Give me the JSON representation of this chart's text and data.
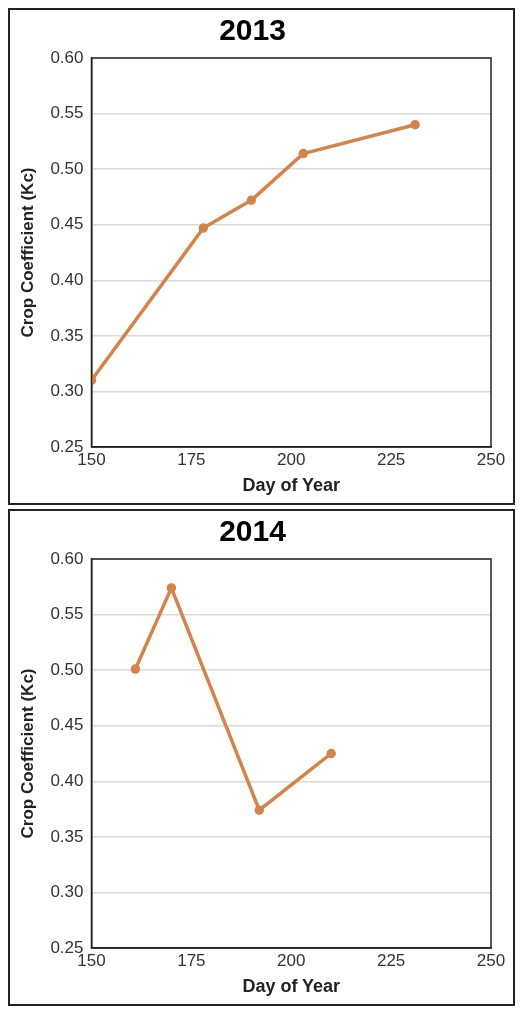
{
  "chart_data": [
    {
      "type": "line",
      "title": "2013",
      "xlabel": "Day of Year",
      "ylabel": "Crop Coefficient (Kc)",
      "xlim": [
        150,
        250
      ],
      "xticks": [
        150,
        175,
        200,
        225,
        250
      ],
      "ylim": [
        0.25,
        0.6
      ],
      "yticks": [
        {
          "value": 0.25,
          "label": "0.25"
        },
        {
          "value": 0.3,
          "label": "0.30"
        },
        {
          "value": 0.35,
          "label": "0.35"
        },
        {
          "value": 0.4,
          "label": "0.40"
        },
        {
          "value": 0.45,
          "label": "0.45"
        },
        {
          "value": 0.5,
          "label": "0.50"
        },
        {
          "value": 0.55,
          "label": "0.55"
        },
        {
          "value": 0.6,
          "label": "0.60"
        }
      ],
      "grid": "y",
      "marker": "circle",
      "line_style": "solid",
      "legend": false,
      "x": [
        150,
        178,
        190,
        203,
        231
      ],
      "series": [
        {
          "color": "#d4834a",
          "values": [
            0.31,
            0.447,
            0.472,
            0.514,
            0.54
          ]
        }
      ]
    },
    {
      "type": "line",
      "title": "2014",
      "xlabel": "Day of Year",
      "ylabel": "Crop Coefficient (Kc)",
      "xlim": [
        150,
        250
      ],
      "xticks": [
        150,
        175,
        200,
        225,
        250
      ],
      "ylim": [
        0.25,
        0.6
      ],
      "yticks": [
        {
          "value": 0.25,
          "label": "0.25"
        },
        {
          "value": 0.3,
          "label": "0.30"
        },
        {
          "value": 0.35,
          "label": "0.35"
        },
        {
          "value": 0.4,
          "label": "0.40"
        },
        {
          "value": 0.45,
          "label": "0.45"
        },
        {
          "value": 0.5,
          "label": "0.50"
        },
        {
          "value": 0.55,
          "label": "0.55"
        },
        {
          "value": 0.6,
          "label": "0.60"
        }
      ],
      "grid": "y",
      "marker": "circle",
      "line_style": "solid",
      "legend": false,
      "x": [
        161,
        170,
        192,
        210
      ],
      "series": [
        {
          "color": "#d4834a",
          "values": [
            0.501,
            0.574,
            0.374,
            0.425
          ]
        }
      ]
    }
  ]
}
